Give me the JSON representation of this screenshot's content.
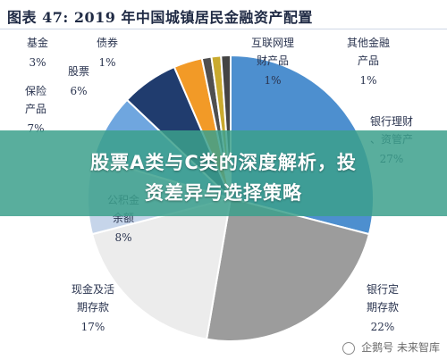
{
  "chart_data": {
    "type": "pie",
    "title": "图表 47:  2019 年中国城镇居民金融资产配置",
    "slices": [
      {
        "label": "银行理财、资管产品",
        "value": 27,
        "value_label": "27%",
        "color": "#4d8fcf"
      },
      {
        "label": "银行定期存款",
        "value": 22,
        "value_label": "22%",
        "color": "#9c9c9c"
      },
      {
        "label": "现金及活期存款",
        "value": 17,
        "value_label": "17%",
        "color": "#ececec"
      },
      {
        "label": "公积金余额",
        "value": 8,
        "value_label": "8%",
        "color": "#c6d5ea"
      },
      {
        "label": "保险产品",
        "value": 7,
        "value_label": "7%",
        "color": "#6fa6df"
      },
      {
        "label": "股票",
        "value": 6,
        "value_label": "6%",
        "color": "#203c6e"
      },
      {
        "label": "基金",
        "value": 3,
        "value_label": "3%",
        "color": "#f29a27"
      },
      {
        "label": "债券",
        "value": 1,
        "value_label": "1%",
        "color": "#4f4f4f"
      },
      {
        "label": "互联网理财产品",
        "value": 1,
        "value_label": "1%",
        "color": "#c9aa2e"
      },
      {
        "label": "其他金融产品",
        "value": 1,
        "value_label": "1%",
        "color": "#444444"
      }
    ],
    "legend": false
  },
  "overlay": {
    "line1": "股票A类与C类的深度解析，投",
    "line2": "资差异与选择策略"
  },
  "watermark": "企鹅号 未来智库"
}
